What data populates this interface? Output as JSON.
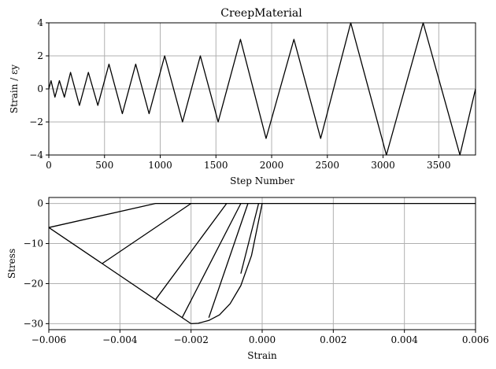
{
  "chart_data": [
    {
      "type": "line",
      "title": "CreepMaterial",
      "xlabel": "Step Number",
      "ylabel": "Strain / εy",
      "xlim": [
        0,
        3830
      ],
      "ylim": [
        -4,
        4
      ],
      "xticks": [
        0,
        500,
        1000,
        1500,
        2000,
        2500,
        3000,
        3500
      ],
      "xtick_labels": [
        "0",
        "500",
        "1000",
        "1500",
        "2000",
        "2500",
        "3000",
        "3500"
      ],
      "yticks": [
        -4,
        -2,
        0,
        2,
        4
      ],
      "ytick_labels": [
        "−4",
        "−2",
        "0",
        "2",
        "4"
      ],
      "grid": true,
      "series": [
        {
          "x": [
            0,
            20,
            55,
            95,
            140,
            195,
            275,
            355,
            440,
            540,
            660,
            780,
            900,
            1040,
            1200,
            1360,
            1520,
            1720,
            1950,
            2200,
            2440,
            2710,
            3030,
            3360,
            3690,
            3830
          ],
          "y": [
            0,
            0.5,
            -0.5,
            0.5,
            -0.5,
            1,
            -1,
            1,
            -1,
            1.5,
            -1.5,
            1.5,
            -1.5,
            2,
            -2,
            2,
            -2,
            3,
            -3,
            3,
            -3,
            4,
            -4,
            4,
            -4,
            0
          ]
        }
      ]
    },
    {
      "type": "line",
      "title": "",
      "xlabel": "Strain",
      "ylabel": "Stress",
      "xlim": [
        -0.006,
        0.006
      ],
      "ylim": [
        -31.5,
        1.5
      ],
      "xticks": [
        -0.006,
        -0.004,
        -0.002,
        0,
        0.002,
        0.004,
        0.006
      ],
      "xtick_labels": [
        "−0.006",
        "−0.004",
        "−0.002",
        "0.000",
        "0.002",
        "0.004",
        "0.006"
      ],
      "yticks": [
        -30,
        -20,
        -10,
        0
      ],
      "ytick_labels": [
        "−30",
        "−20",
        "−10",
        "0"
      ],
      "grid": true,
      "series": [
        {
          "x": [
            -0.006,
            -0.002
          ],
          "y": [
            -6,
            -30
          ]
        },
        {
          "x": [
            -0.002,
            -0.0018,
            -0.0015,
            -0.0012,
            -0.0009,
            -0.0006,
            -0.0003,
            0
          ],
          "y": [
            -30,
            -29.9,
            -29.2,
            -27.8,
            -25,
            -20.5,
            -13,
            0
          ]
        },
        {
          "x": [
            0,
            0.006
          ],
          "y": [
            0,
            0
          ]
        },
        {
          "x": [
            -0.006,
            -0.003,
            0
          ],
          "y": [
            -6,
            0,
            0
          ]
        },
        {
          "x": [
            -0.0045,
            -0.002
          ],
          "y": [
            -15,
            0
          ]
        },
        {
          "x": [
            -0.003,
            -0.001
          ],
          "y": [
            -24,
            0
          ]
        },
        {
          "x": [
            -0.00225,
            -0.0006
          ],
          "y": [
            -28.5,
            0
          ]
        },
        {
          "x": [
            -0.0015,
            -0.0004
          ],
          "y": [
            -28.5,
            0
          ]
        },
        {
          "x": [
            -0.0006,
            -0.0001
          ],
          "y": [
            -17.5,
            0
          ]
        }
      ]
    }
  ]
}
